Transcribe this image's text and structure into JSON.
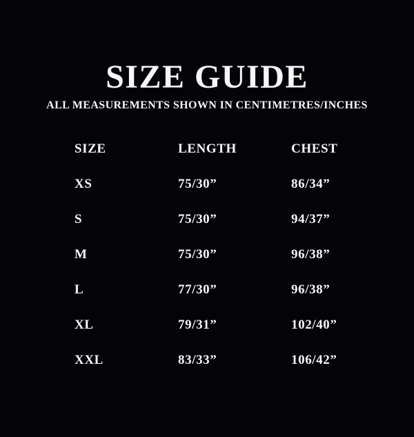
{
  "page": {
    "title": "SIZE GUIDE",
    "subtitle": "ALL MEASUREMENTS SHOWN IN CENTIMETRES/INCHES"
  },
  "table": {
    "columns": [
      "SIZE",
      "LENGTH",
      "CHEST"
    ],
    "rows": [
      {
        "size": "XS",
        "length": "75/30”",
        "chest": "86/34”"
      },
      {
        "size": "S",
        "length": "75/30”",
        "chest": "94/37”"
      },
      {
        "size": "M",
        "length": "75/30”",
        "chest": "96/38”"
      },
      {
        "size": "L",
        "length": "77/30”",
        "chest": "96/38”"
      },
      {
        "size": "XL",
        "length": "79/31”",
        "chest": "102/40”"
      },
      {
        "size": "XXL",
        "length": "83/33”",
        "chest": "106/42”"
      }
    ]
  },
  "colors": {
    "background": "#030308",
    "text": "#f7f7f7"
  }
}
